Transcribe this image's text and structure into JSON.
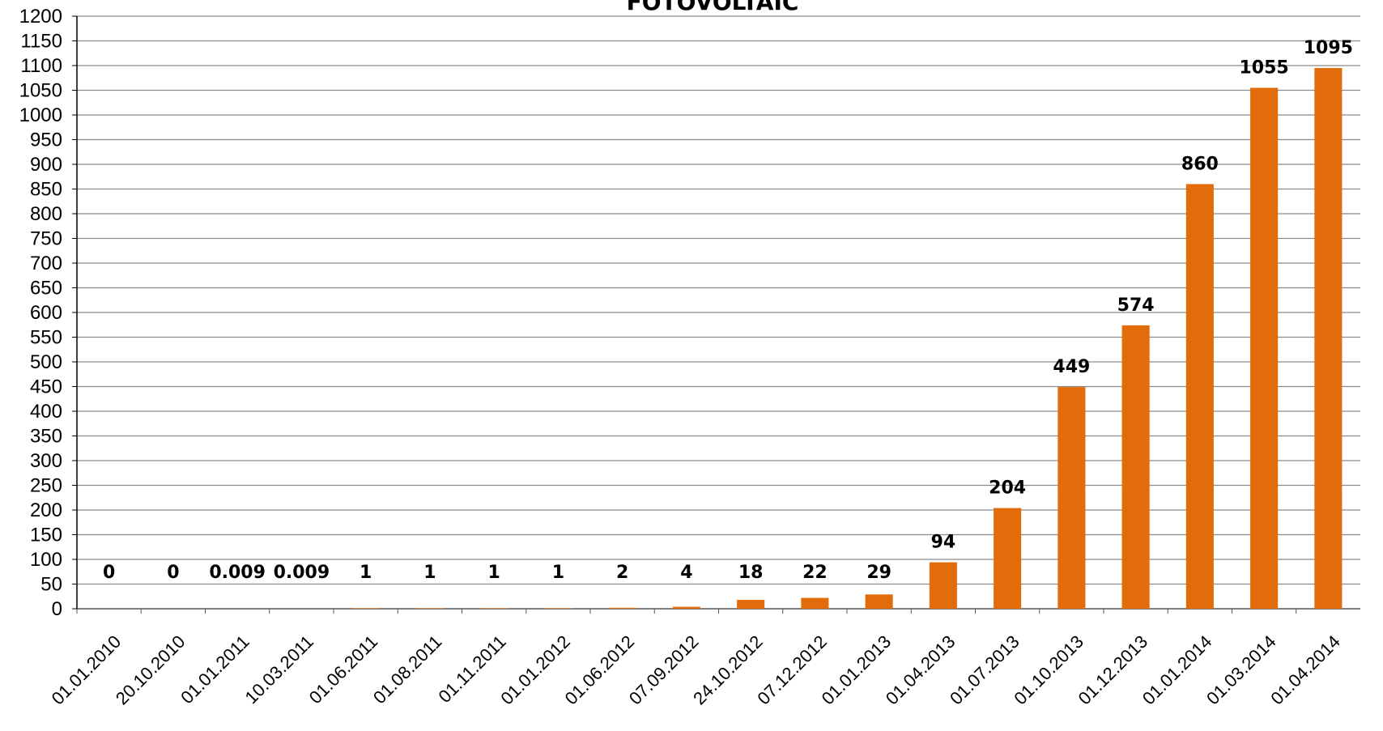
{
  "chart_data": {
    "type": "bar",
    "title": "FOTOVOLTAIC",
    "xlabel": "",
    "ylabel": "",
    "ylim": [
      0,
      1200
    ],
    "ytick_step": 50,
    "grid": true,
    "legend": "none",
    "bar_color": "#e36c0a",
    "categories": [
      "01.01.2010",
      "20.10.2010",
      "01.01.2011",
      "10.03.2011",
      "01.06.2011",
      "01.08.2011",
      "01.11.2011",
      "01.01.2012",
      "01.06.2012",
      "07.09.2012",
      "24.10.2012",
      "07.12.2012",
      "01.01.2013",
      "01.04.2013",
      "01.07.2013",
      "01.10.2013",
      "01.12.2013",
      "01.01.2014",
      "01.03.2014",
      "01.04.2014"
    ],
    "values": [
      0,
      0,
      0.009,
      0.009,
      1,
      1,
      1,
      1,
      2,
      4,
      18,
      22,
      29,
      94,
      204,
      449,
      574,
      860,
      1055,
      1095
    ],
    "data_labels": [
      "0",
      "0",
      "0.009",
      "0.009",
      "1",
      "1",
      "1",
      "1",
      "2",
      "4",
      "18",
      "22",
      "29",
      "94",
      "204",
      "449",
      "574",
      "860",
      "1055",
      "1095"
    ]
  }
}
